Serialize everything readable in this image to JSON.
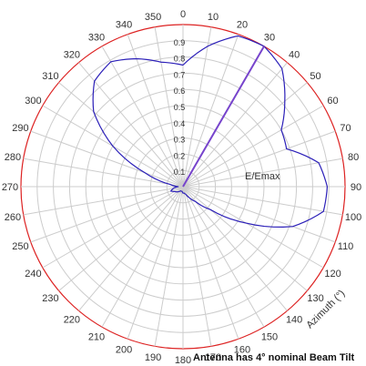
{
  "chart_data": {
    "type": "polar-line",
    "radial_axis": {
      "label": "E/Emax",
      "range": [
        0,
        1
      ],
      "ticks": [
        "0.1",
        "0.2",
        "0.3",
        "0.4",
        "0.5",
        "0.6",
        "0.7",
        "0.8",
        "0.9"
      ]
    },
    "angular_axis": {
      "label": "Azimuth (°)",
      "direction": "clockwise",
      "zero_at": "top",
      "ticks": [
        "0",
        "10",
        "20",
        "30",
        "40",
        "50",
        "60",
        "70",
        "80",
        "90",
        "100",
        "110",
        "120",
        "130",
        "140",
        "150",
        "160",
        "170",
        "180",
        "190",
        "200",
        "210",
        "220",
        "230",
        "240",
        "250",
        "260",
        "270",
        "280",
        "290",
        "300",
        "310",
        "320",
        "330",
        "340",
        "350"
      ]
    },
    "grid": true,
    "series": [
      {
        "color": "#2b1fb8",
        "azimuth_deg": [
          0,
          10,
          20,
          30,
          40,
          50,
          60,
          70,
          80,
          90,
          100,
          110,
          120,
          130,
          140,
          150,
          160,
          170,
          180,
          190,
          200,
          210,
          220,
          230,
          240,
          250,
          260,
          270,
          280,
          290,
          300,
          310,
          320,
          330,
          340,
          350
        ],
        "values": [
          0.75,
          0.88,
          0.99,
          1.0,
          0.95,
          0.82,
          0.7,
          0.68,
          0.85,
          0.89,
          0.88,
          0.72,
          0.45,
          0.22,
          0.12,
          0.08,
          0.05,
          0.04,
          0.04,
          0.03,
          0.03,
          0.03,
          0.04,
          0.05,
          0.06,
          0.08,
          0.06,
          0.03,
          0.08,
          0.25,
          0.5,
          0.72,
          0.85,
          0.89,
          0.84,
          0.78
        ]
      }
    ],
    "beam_line": {
      "azimuth_deg": 30,
      "value": 1.0,
      "color": "#7744cc"
    },
    "outer_circle_color": "#dd2222",
    "grid_color": "#cccccc"
  },
  "footnote": "Antenna has 4° nominal Beam Tilt"
}
